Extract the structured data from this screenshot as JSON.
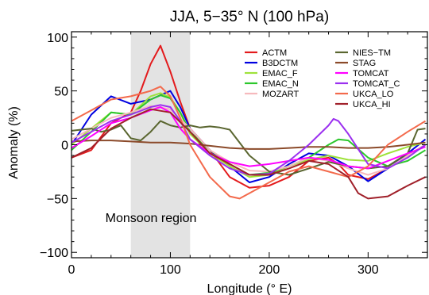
{
  "chart_data": {
    "type": "line",
    "title": "JJA, 5−35° N (100 hPa)",
    "xlabel": "Longitude (° E)",
    "ylabel": "Anomaly (%)",
    "xlim": [
      0,
      360
    ],
    "ylim": [
      -105,
      105
    ],
    "x_ticks": [
      0,
      100,
      200,
      300
    ],
    "y_ticks": [
      -100,
      -50,
      0,
      50,
      100
    ],
    "x_tick_labels": [
      "0",
      "100",
      "200",
      "300"
    ],
    "y_tick_labels": [
      "−100",
      "−50",
      "0",
      "50",
      "100"
    ],
    "grid": false,
    "legend": "top-right, two columns",
    "shaded_region": {
      "x_start": 60,
      "x_end": 120,
      "label": "Monsoon region",
      "color": "#e3e3e3"
    },
    "series": [
      {
        "name": "ACTM",
        "color": "#e31a1c",
        "x": [
          0,
          20,
          40,
          60,
          70,
          80,
          90,
          100,
          110,
          120,
          140,
          160,
          180,
          200,
          220,
          240,
          260,
          270,
          280,
          300,
          320,
          340,
          358
        ],
        "y": [
          -12,
          -5,
          20,
          30,
          50,
          75,
          92,
          68,
          40,
          15,
          -5,
          -30,
          -40,
          -38,
          -30,
          -15,
          -12,
          -18,
          -28,
          -32,
          -22,
          -10,
          0
        ]
      },
      {
        "name": "B3DCTM",
        "color": "#0000e0",
        "x": [
          0,
          20,
          40,
          60,
          80,
          100,
          110,
          120,
          140,
          160,
          180,
          200,
          220,
          240,
          260,
          280,
          300,
          320,
          340,
          358
        ],
        "y": [
          0,
          28,
          45,
          38,
          42,
          50,
          35,
          15,
          -5,
          -20,
          -35,
          -30,
          -18,
          -8,
          -10,
          -20,
          -34,
          -22,
          -8,
          5
        ]
      },
      {
        "name": "EMAC_F",
        "color": "#9ee23a",
        "x": [
          0,
          20,
          40,
          60,
          80,
          90,
          100,
          110,
          120,
          140,
          160,
          180,
          200,
          220,
          240,
          260,
          280,
          300,
          320,
          340,
          358
        ],
        "y": [
          0,
          15,
          30,
          28,
          45,
          48,
          44,
          30,
          10,
          -8,
          -20,
          -30,
          -28,
          -20,
          -14,
          -10,
          -14,
          -15,
          -8,
          -2,
          2
        ]
      },
      {
        "name": "EMAC_N",
        "color": "#2cc72c",
        "x": [
          0,
          20,
          40,
          60,
          80,
          90,
          100,
          110,
          120,
          140,
          160,
          180,
          200,
          220,
          240,
          260,
          270,
          280,
          300,
          320,
          340,
          358
        ],
        "y": [
          -5,
          12,
          30,
          28,
          42,
          46,
          43,
          30,
          12,
          -5,
          -18,
          -28,
          -26,
          -20,
          -12,
          0,
          5,
          4,
          -12,
          -20,
          -15,
          -5
        ]
      },
      {
        "name": "MOZART",
        "color": "#f6b9bd",
        "x": [
          0,
          20,
          40,
          60,
          80,
          100,
          120,
          140,
          160,
          180,
          200,
          220,
          240,
          260,
          280,
          300,
          320,
          340,
          358
        ],
        "y": [
          5,
          15,
          25,
          30,
          36,
          33,
          15,
          -5,
          -16,
          -24,
          -25,
          -20,
          -12,
          -15,
          -22,
          -28,
          -22,
          -10,
          0
        ]
      },
      {
        "name": "NIES−TM",
        "color": "#5a6630",
        "x": [
          0,
          10,
          20,
          30,
          40,
          50,
          60,
          70,
          80,
          90,
          100,
          110,
          120,
          130,
          140,
          150,
          160,
          180,
          200,
          220,
          240,
          260,
          280,
          300,
          320,
          340,
          350,
          358
        ],
        "y": [
          13,
          14,
          15,
          12,
          14,
          18,
          6,
          4,
          12,
          22,
          18,
          16,
          18,
          16,
          17,
          16,
          14,
          -10,
          -25,
          -28,
          -22,
          -16,
          -20,
          -22,
          -20,
          -8,
          14,
          15
        ]
      },
      {
        "name": "STAG",
        "color": "#8b4a2a",
        "x": [
          0,
          20,
          40,
          60,
          80,
          100,
          120,
          140,
          160,
          180,
          200,
          220,
          240,
          260,
          280,
          300,
          320,
          340,
          358
        ],
        "y": [
          3,
          4,
          4,
          3,
          2,
          2,
          1,
          -1,
          -3,
          -4,
          -4,
          -3,
          -2,
          -2,
          -3,
          -3,
          -2,
          0,
          2
        ]
      },
      {
        "name": "TOMCAT",
        "color": "#ff00ff",
        "x": [
          0,
          20,
          40,
          60,
          80,
          90,
          100,
          110,
          120,
          140,
          160,
          180,
          200,
          220,
          240,
          260,
          280,
          300,
          320,
          340,
          358
        ],
        "y": [
          -3,
          8,
          20,
          25,
          32,
          35,
          30,
          15,
          5,
          -8,
          -16,
          -20,
          -18,
          -15,
          -12,
          -14,
          -20,
          -22,
          -15,
          -8,
          -2
        ]
      },
      {
        "name": "TOMCAT_C",
        "color": "#9b30ef",
        "x": [
          0,
          20,
          40,
          60,
          80,
          90,
          100,
          110,
          120,
          140,
          160,
          180,
          200,
          220,
          240,
          260,
          265,
          270,
          280,
          300,
          320,
          340,
          358
        ],
        "y": [
          2,
          12,
          22,
          28,
          35,
          37,
          35,
          22,
          5,
          -10,
          -22,
          -28,
          -27,
          -15,
          0,
          18,
          24,
          22,
          10,
          -18,
          -22,
          -12,
          0
        ]
      },
      {
        "name": "UKCA_LO",
        "color": "#f36a4c",
        "x": [
          0,
          20,
          40,
          60,
          80,
          90,
          100,
          110,
          120,
          140,
          160,
          170,
          180,
          200,
          220,
          240,
          260,
          280,
          300,
          320,
          340,
          358
        ],
        "y": [
          22,
          32,
          42,
          45,
          50,
          54,
          45,
          25,
          0,
          -30,
          -48,
          -50,
          -45,
          -35,
          -25,
          -20,
          -25,
          -30,
          -20,
          0,
          12,
          22
        ]
      },
      {
        "name": "UKCA_HI",
        "color": "#a0202a",
        "x": [
          0,
          20,
          40,
          60,
          80,
          100,
          120,
          140,
          160,
          180,
          200,
          220,
          240,
          260,
          280,
          290,
          300,
          320,
          340,
          358
        ],
        "y": [
          -12,
          -3,
          15,
          25,
          33,
          30,
          12,
          -8,
          -18,
          -28,
          -28,
          -22,
          -15,
          -18,
          -30,
          -45,
          -50,
          -48,
          -38,
          -30
        ]
      }
    ]
  }
}
